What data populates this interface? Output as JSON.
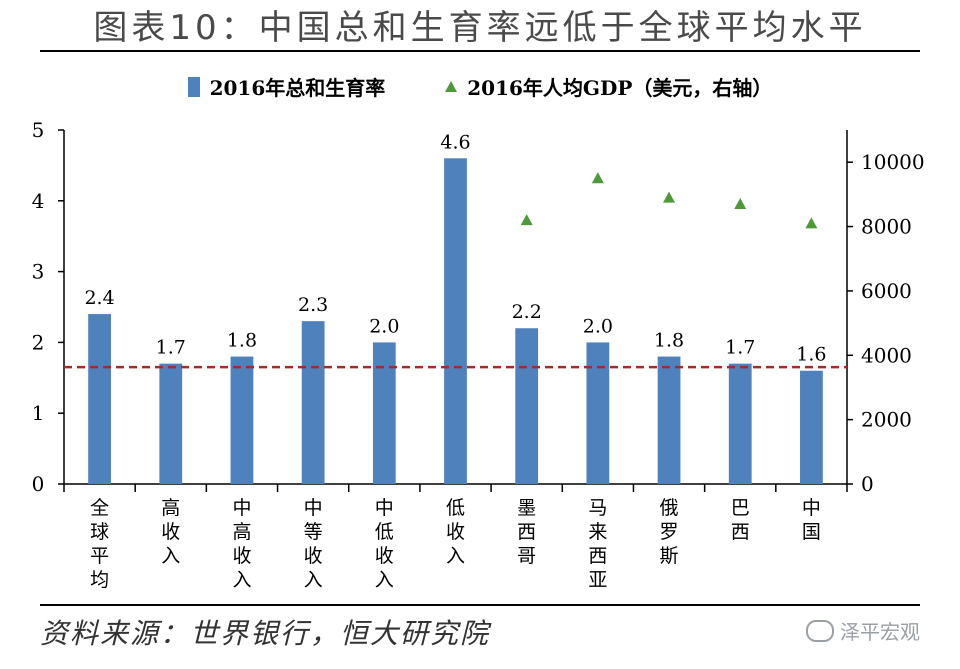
{
  "title": "图表10：中国总和生育率远低于全球平均水平",
  "legend": {
    "bar_label": "2016年总和生育率",
    "marker_label": "2016年人均GDP（美元，右轴）"
  },
  "source": "资料来源：世界银行，恒大研究院",
  "watermark": "泽平宏观",
  "colors": {
    "bar": "#4f81bd",
    "marker": "#4e9a3a",
    "reference_line": "#a52a2a"
  },
  "chart_data": {
    "type": "bar",
    "categories": [
      "全球平均",
      "高收入",
      "中高收入",
      "中等收入",
      "中低收入",
      "低收入",
      "墨西哥",
      "马来西亚",
      "俄罗斯",
      "巴西",
      "中国"
    ],
    "series": [
      {
        "name": "2016年总和生育率",
        "type": "bar",
        "axis": "left",
        "values": [
          2.4,
          1.7,
          1.8,
          2.3,
          2.0,
          4.6,
          2.2,
          2.0,
          1.8,
          1.7,
          1.6
        ],
        "labels": [
          "2.4",
          "1.7",
          "1.8",
          "2.3",
          "2.0",
          "4.6",
          "2.2",
          "2.0",
          "1.8",
          "1.7",
          "1.6"
        ]
      },
      {
        "name": "2016年人均GDP（美元，右轴）",
        "type": "scatter",
        "axis": "right",
        "values": [
          null,
          null,
          null,
          null,
          null,
          null,
          8200,
          9500,
          8900,
          8700,
          8100
        ]
      }
    ],
    "y_left": {
      "min": 0,
      "max": 5,
      "ticks": [
        "0",
        "1",
        "2",
        "3",
        "4",
        "5"
      ]
    },
    "y_right": {
      "min": 0,
      "max": 11000,
      "ticks": [
        "0",
        "2000",
        "4000",
        "6000",
        "8000",
        "10000"
      ]
    },
    "reference_line": {
      "value": 1.65,
      "axis": "left",
      "style": "dashed"
    },
    "grid": false,
    "legend_position": "top"
  }
}
